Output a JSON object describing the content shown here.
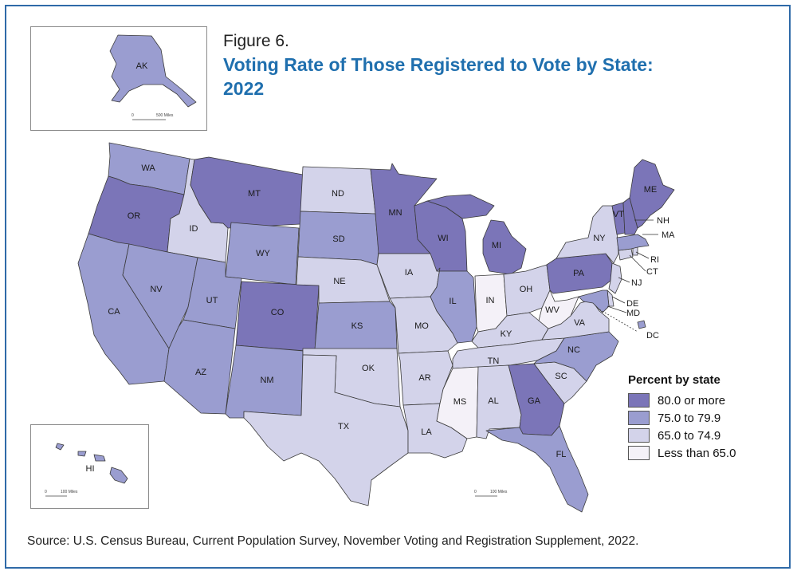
{
  "figure": {
    "label": "Figure 6.",
    "title": "Voting Rate of Those Registered to Vote by State: 2022"
  },
  "colors": {
    "band_80_plus": "#7b75b8",
    "band_75_79": "#9a9dd0",
    "band_65_74": "#d3d3ea",
    "band_below_65": "#f4f1f8",
    "border": "#3a3a3a",
    "title_blue": "#1f6fae",
    "frame_blue": "#2f6aa8"
  },
  "legend": {
    "title": "Percent by state",
    "items": [
      {
        "label": "80.0 or more",
        "band": "band_80_plus"
      },
      {
        "label": "75.0 to 79.9",
        "band": "band_75_79"
      },
      {
        "label": "65.0 to 74.9",
        "band": "band_65_74"
      },
      {
        "label": "Less than 65.0",
        "band": "band_below_65"
      }
    ]
  },
  "states": {
    "AK": "band_75_79",
    "HI": "band_75_79",
    "WA": "band_75_79",
    "OR": "band_80_plus",
    "CA": "band_75_79",
    "ID": "band_65_74",
    "NV": "band_75_79",
    "MT": "band_80_plus",
    "WY": "band_75_79",
    "UT": "band_75_79",
    "AZ": "band_75_79",
    "CO": "band_80_plus",
    "NM": "band_75_79",
    "ND": "band_65_74",
    "SD": "band_75_79",
    "NE": "band_65_74",
    "KS": "band_75_79",
    "OK": "band_65_74",
    "TX": "band_65_74",
    "MN": "band_80_plus",
    "IA": "band_65_74",
    "MO": "band_65_74",
    "AR": "band_65_74",
    "LA": "band_65_74",
    "WI": "band_80_plus",
    "IL": "band_75_79",
    "MI": "band_80_plus",
    "IN": "band_below_65",
    "OH": "band_65_74",
    "KY": "band_65_74",
    "TN": "band_65_74",
    "MS": "band_below_65",
    "AL": "band_65_74",
    "GA": "band_80_plus",
    "FL": "band_75_79",
    "SC": "band_65_74",
    "NC": "band_75_79",
    "VA": "band_65_74",
    "WV": "band_below_65",
    "PA": "band_80_plus",
    "NY": "band_65_74",
    "VT": "band_80_plus",
    "NH": "band_80_plus",
    "ME": "band_80_plus",
    "MA": "band_75_79",
    "RI": "band_65_74",
    "CT": "band_65_74",
    "NJ": "band_65_74",
    "DE": "band_65_74",
    "MD": "band_75_79",
    "DC": "band_75_79"
  },
  "scale_bars": {
    "alaska": {
      "zero": "0",
      "label": "500 Miles"
    },
    "hawaii": {
      "zero": "0",
      "label": "100 Miles"
    },
    "conus": {
      "zero": "0",
      "label": "100 Miles"
    }
  },
  "source": "Source: U.S. Census Bureau, Current Population Survey, November Voting and Registration Supplement, 2022."
}
